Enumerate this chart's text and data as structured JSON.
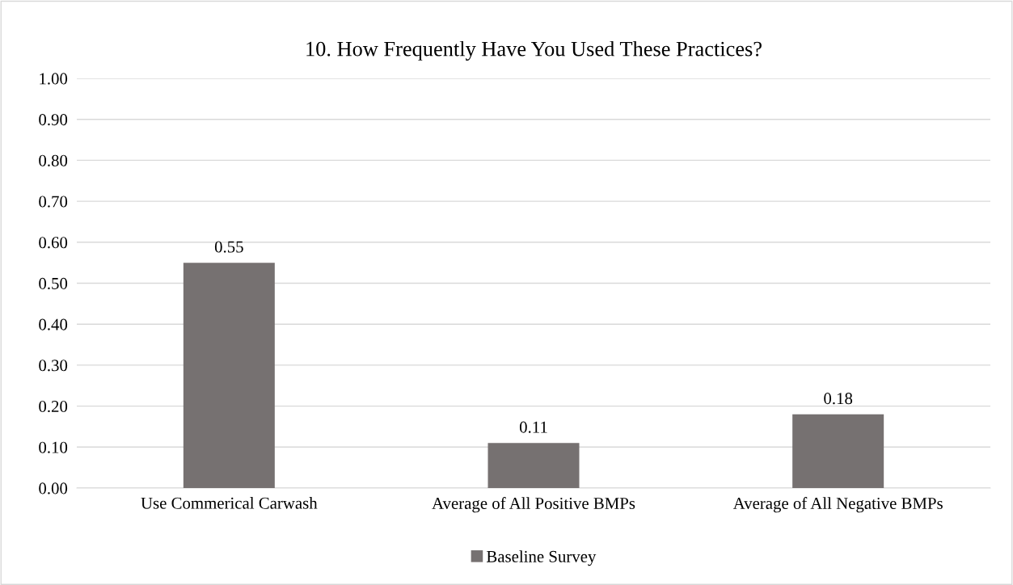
{
  "chart_data": {
    "type": "bar",
    "title": "10. How Frequently Have You Used These Practices?",
    "categories": [
      "Use Commerical Carwash",
      "Average of All Positive BMPs",
      "Average of All Negative BMPs"
    ],
    "series": [
      {
        "name": "Baseline Survey",
        "color": "#767171",
        "values": [
          0.55,
          0.11,
          0.18
        ]
      }
    ],
    "ylim": [
      0,
      1
    ],
    "yticks": [
      {
        "value": 0,
        "label": "0.00"
      },
      {
        "value": 0.1,
        "label": "0.10"
      },
      {
        "value": 0.2,
        "label": "0.20"
      },
      {
        "value": 0.3,
        "label": "0.30"
      },
      {
        "value": 0.4,
        "label": "0.40"
      },
      {
        "value": 0.5,
        "label": "0.50"
      },
      {
        "value": 0.6,
        "label": "0.60"
      },
      {
        "value": 0.7,
        "label": "0.70"
      },
      {
        "value": 0.8,
        "label": "0.80"
      },
      {
        "value": 0.9,
        "label": "0.90"
      },
      {
        "value": 1,
        "label": "1.00"
      }
    ],
    "grid": "y",
    "legend": "bottom",
    "data_labels": true
  }
}
